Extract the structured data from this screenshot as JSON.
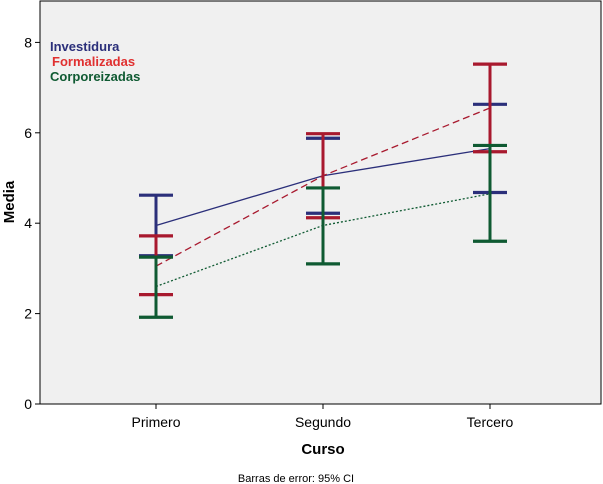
{
  "chart_data": {
    "type": "line",
    "title": "",
    "xlabel": "Curso",
    "ylabel": "Media",
    "categories": [
      "Primero",
      "Segundo",
      "Tercero"
    ],
    "ylim": [
      0,
      8.5
    ],
    "yticks": [
      0,
      2,
      4,
      6,
      8
    ],
    "grid": false,
    "legend_position": "top-left",
    "footnote": "Barras de error: 95% CI",
    "series": [
      {
        "name": "Investidura",
        "color": "#2B2F7A",
        "line_style": "solid",
        "values": [
          3.95,
          5.05,
          5.65
        ],
        "ci_low": [
          3.28,
          4.22,
          4.68
        ],
        "ci_high": [
          4.62,
          5.88,
          6.63
        ]
      },
      {
        "name": "Formalizadas",
        "color": "#A8192E",
        "line_style": "dashed",
        "values": [
          3.05,
          5.05,
          6.55
        ],
        "ci_low": [
          2.42,
          4.12,
          5.58
        ],
        "ci_high": [
          3.72,
          5.98,
          7.52
        ]
      },
      {
        "name": "Corporeizadas",
        "color": "#0F5A32",
        "line_style": "dotted",
        "values": [
          2.6,
          3.95,
          4.65
        ],
        "ci_low": [
          1.92,
          3.1,
          3.6
        ],
        "ci_high": [
          3.25,
          4.78,
          5.72
        ]
      }
    ]
  }
}
